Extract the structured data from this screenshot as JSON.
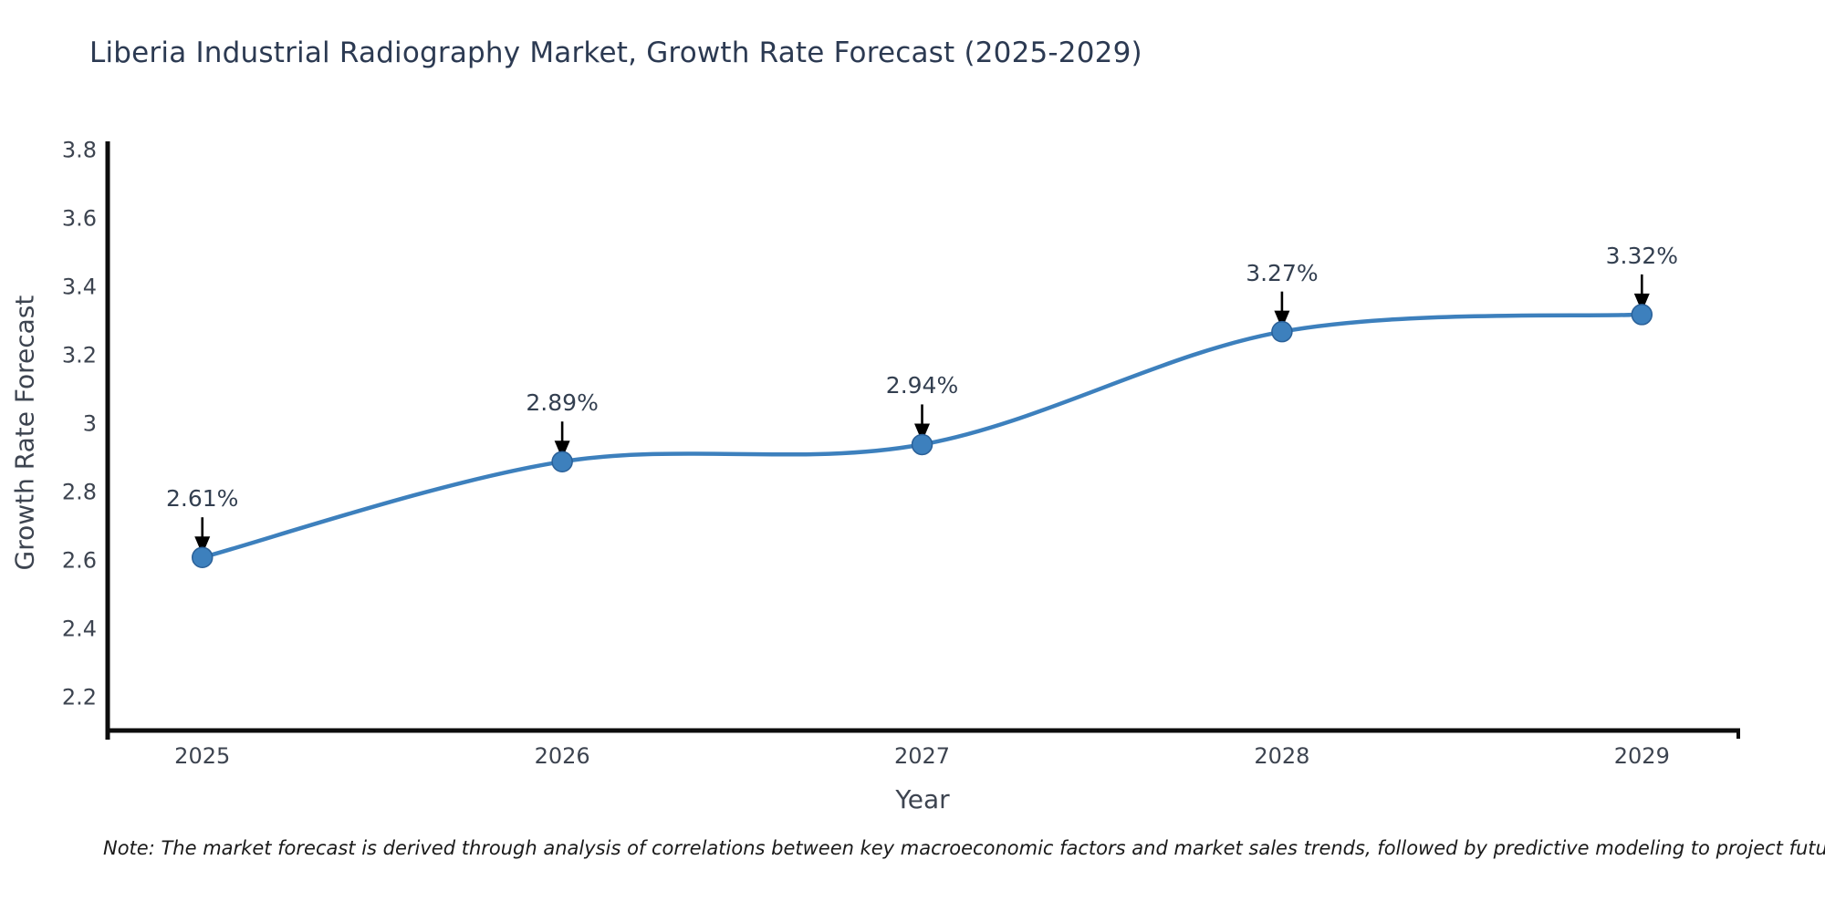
{
  "chart_data": {
    "type": "line",
    "title": "Liberia Industrial Radiography Market, Growth Rate Forecast (2025-2029)",
    "xlabel": "Year",
    "ylabel": "Growth Rate Forecast",
    "x": [
      2025,
      2026,
      2027,
      2028,
      2029
    ],
    "values": [
      2.61,
      2.89,
      2.94,
      3.27,
      3.32
    ],
    "point_labels": [
      "2.61%",
      "2.89%",
      "2.94%",
      "3.27%",
      "3.32%"
    ],
    "xtick_labels": [
      "2025",
      "2026",
      "2027",
      "2028",
      "2029"
    ],
    "yticks": [
      2.2,
      2.4,
      2.6,
      2.8,
      3,
      3.2,
      3.4,
      3.6,
      3.8
    ],
    "ytick_labels": [
      "2.2",
      "2.4",
      "2.6",
      "2.8",
      "3",
      "3.2",
      "3.4",
      "3.6",
      "3.8"
    ],
    "x_range": [
      2024.737,
      2029.268
    ],
    "y_range": [
      2.104,
      3.821
    ],
    "grid": false,
    "legend": null,
    "note": "Note: The market forecast is derived through analysis of correlations between key macroeconomic factors and market sales trends, followed by predictive modeling to project future sales",
    "colors": {
      "line": "#3d80bd",
      "marker_fill": "#3d80bd",
      "marker_edge": "#2a6098",
      "arrow": "#000000",
      "axis_spine": "#0d0d0d",
      "title_text": "#2c3a52",
      "tick_text": "#3d4450",
      "axis_title_text": "#3d4450",
      "annotation_text": "#333f50",
      "note_text": "#1a1a1a"
    }
  }
}
